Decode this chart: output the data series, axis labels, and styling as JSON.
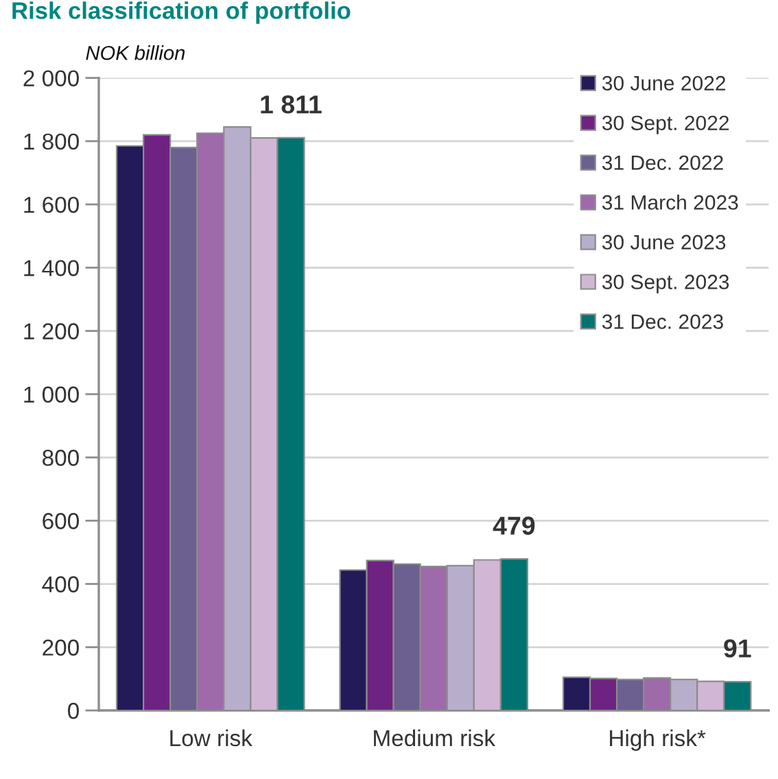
{
  "chart_data": {
    "type": "bar",
    "title": "Risk classification of portfolio",
    "ylabel": "NOK billion",
    "categories": [
      "Low risk",
      "Medium risk",
      "High risk*"
    ],
    "series": [
      {
        "name": "30 June 2022",
        "color": "#231a5a",
        "values": [
          1785,
          444,
          105
        ]
      },
      {
        "name": "30 Sept. 2022",
        "color": "#6e2382",
        "values": [
          1820,
          474,
          101
        ]
      },
      {
        "name": "31 Dec. 2022",
        "color": "#6b6090",
        "values": [
          1780,
          463,
          98
        ]
      },
      {
        "name": "31 March 2023",
        "color": "#9e6aaa",
        "values": [
          1825,
          455,
          103
        ]
      },
      {
        "name": "30 June 2023",
        "color": "#b7aecb",
        "values": [
          1845,
          458,
          98
        ]
      },
      {
        "name": "30 Sept. 2023",
        "color": "#d2b6d6",
        "values": [
          1810,
          476,
          92
        ]
      },
      {
        "name": "31 Dec. 2023",
        "color": "#007370",
        "values": [
          1811,
          479,
          91
        ],
        "value_labels": [
          "1 811",
          "479",
          "91"
        ]
      }
    ],
    "ylim": [
      0,
      2000
    ],
    "yticks": [
      0,
      200,
      400,
      600,
      800,
      {
        "value": 1000,
        "label": "1 000"
      },
      {
        "value": 1200,
        "label": "1 200"
      },
      {
        "value": 1400,
        "label": "1 400"
      },
      {
        "value": 1600,
        "label": "1 600"
      },
      {
        "value": 1800,
        "label": "1 800"
      },
      {
        "value": 2000,
        "label": "2 000"
      }
    ],
    "grid": "y",
    "legend": "top right"
  }
}
